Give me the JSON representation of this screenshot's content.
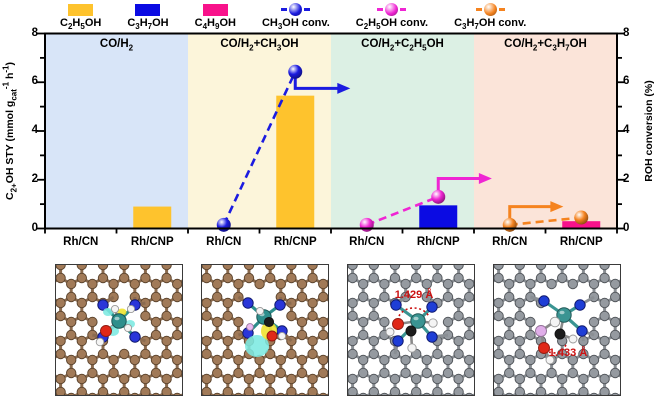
{
  "legend": {
    "items": [
      {
        "label_html": "C<sub>2</sub>H<sub>5</sub>OH",
        "type": "swatch",
        "color": "#FEC32D"
      },
      {
        "label_html": "C<sub>3</sub>H<sub>7</sub>OH",
        "type": "swatch",
        "color": "#0B0BE3"
      },
      {
        "label_html": "C<sub>4</sub>H<sub>9</sub>OH",
        "type": "swatch",
        "color": "#F8128B"
      },
      {
        "label_html": "CH<sub>3</sub>OH conv.",
        "type": "marker",
        "color": "#1B1BE0"
      },
      {
        "label_html": "C<sub>2</sub>H<sub>5</sub>OH conv.",
        "type": "marker",
        "color": "#EF25D3"
      },
      {
        "label_html": "C<sub>3</sub>H<sub>7</sub>OH conv.",
        "type": "marker",
        "color": "#F5831F"
      }
    ]
  },
  "chart_data": {
    "type": "bar",
    "dual_axis": true,
    "left_axis": {
      "label_html": "C<sub>2+</sub>OH STY (mmol g<sub>cat</sub><sup>-1</sup> h<sup>-1</sup>)",
      "range": [
        0,
        8
      ],
      "ticks": [
        0,
        2,
        4,
        6,
        8
      ]
    },
    "right_axis": {
      "label_html": "ROH conversion (%)",
      "range": [
        0,
        8
      ],
      "ticks": [
        0,
        2,
        4,
        6,
        8
      ]
    },
    "regions": [
      {
        "label_html": "CO/H<sub>2</sub>",
        "bg": "#D8E5F8"
      },
      {
        "label_html": "CO/H<sub>2</sub>+CH<sub>3</sub>OH",
        "bg": "#FCF5DA"
      },
      {
        "label_html": "CO/H<sub>2</sub>+C<sub>2</sub>H<sub>5</sub>OH",
        "bg": "#DCF0E4"
      },
      {
        "label_html": "CO/H<sub>2</sub>+C<sub>3</sub>H<sub>7</sub>OH",
        "bg": "#FBE4D9"
      }
    ],
    "categories": [
      "Rh/CN",
      "Rh/CNP",
      "Rh/CN",
      "Rh/CNP",
      "Rh/CN",
      "Rh/CNP",
      "Rh/CN",
      "Rh/CNP"
    ],
    "bars": [
      {
        "slot": 1,
        "series": "C2H5OH",
        "value": 0.9,
        "color": "#FEC32D"
      },
      {
        "slot": 3,
        "series": "C2H5OH",
        "value": 5.45,
        "color": "#FEC32D"
      },
      {
        "slot": 5,
        "series": "C3H7OH",
        "value": 0.95,
        "color": "#0B0BE3"
      },
      {
        "slot": 7,
        "series": "C4H9OH",
        "value": 0.3,
        "color": "#F8128B"
      }
    ],
    "conversions": [
      {
        "name": "CH3OH conv.",
        "color": "#1B1BE0",
        "points": [
          {
            "slot": 2,
            "value": 0.15
          },
          {
            "slot": 3,
            "value": 6.43
          }
        ],
        "arrow": {
          "from_slot": 3,
          "from_value": 6.43,
          "elbow_value": 5.75,
          "end_slot": 4.27
        }
      },
      {
        "name": "C2H5OH conv.",
        "color": "#EF25D3",
        "points": [
          {
            "slot": 4,
            "value": 0.15
          },
          {
            "slot": 5,
            "value": 1.3
          }
        ],
        "arrow": {
          "from_slot": 5,
          "from_value": 1.3,
          "elbow_value": 2.05,
          "end_slot": 6.25
        }
      },
      {
        "name": "C3H7OH conv.",
        "color": "#F5831F",
        "points": [
          {
            "slot": 6,
            "value": 0.15
          },
          {
            "slot": 7,
            "value": 0.45
          }
        ],
        "arrow": {
          "from_slot": 6,
          "from_value": 0.15,
          "elbow_value": 0.9,
          "end_slot": 7.25
        }
      }
    ]
  },
  "panels": [
    {
      "annotation": "",
      "style": "brown"
    },
    {
      "annotation": "",
      "style": "brown"
    },
    {
      "annotation": "1.429 Å",
      "style": "gray"
    },
    {
      "annotation": "1.433 Å",
      "style": "gray"
    }
  ],
  "panel_colors": {
    "brown": {
      "bond": "#8B6B4F",
      "atom": "#A17A58",
      "edge": "#5E462F",
      "nitrogen": "#2A36D9",
      "rhodium": "#2E8E8C",
      "oxygen": "#E02818",
      "hydrogen": "#F4F4F4",
      "carbon": "#1C1C1C",
      "cyan_blob": "#7CE9E1",
      "yellow_blob": "#EFE32B",
      "phosphorus": "#ECB9F2"
    },
    "gray": {
      "bond": "#8A8F94",
      "atom": "#959AA0",
      "edge": "#54585D",
      "nitrogen": "#1E3ED6",
      "rhodium": "#3A9492",
      "oxygen": "#E02818",
      "hydrogen": "#F4F4F4",
      "carbon": "#1C1C1C",
      "phosphorus": "#E0AEE9",
      "annotation": "#CC1111"
    }
  }
}
